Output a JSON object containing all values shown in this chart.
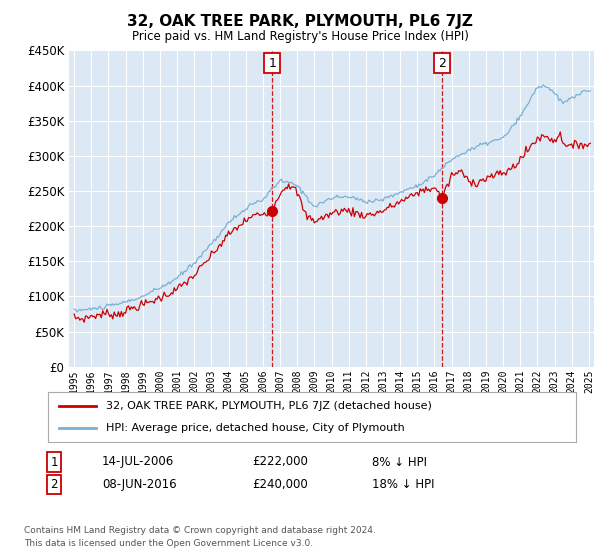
{
  "title": "32, OAK TREE PARK, PLYMOUTH, PL6 7JZ",
  "subtitle": "Price paid vs. HM Land Registry's House Price Index (HPI)",
  "legend_line1": "32, OAK TREE PARK, PLYMOUTH, PL6 7JZ (detached house)",
  "legend_line2": "HPI: Average price, detached house, City of Plymouth",
  "annotation1_label": "1",
  "annotation1_date": "14-JUL-2006",
  "annotation1_price": "£222,000",
  "annotation1_hpi": "8% ↓ HPI",
  "annotation1_year": 2006.54,
  "annotation1_value": 222000,
  "annotation2_label": "2",
  "annotation2_date": "08-JUN-2016",
  "annotation2_price": "£240,000",
  "annotation2_hpi": "18% ↓ HPI",
  "annotation2_year": 2016.44,
  "annotation2_value": 240000,
  "footer1": "Contains HM Land Registry data © Crown copyright and database right 2024.",
  "footer2": "This data is licensed under the Open Government Licence v3.0.",
  "ylim": [
    0,
    450000
  ],
  "yticks": [
    0,
    50000,
    100000,
    150000,
    200000,
    250000,
    300000,
    350000,
    400000,
    450000
  ],
  "xlim_start": 1994.7,
  "xlim_end": 2025.3,
  "bg_color": "#dce9f5",
  "red_color": "#cc0000",
  "blue_color": "#7ab0d4",
  "grid_color": "#ffffff"
}
